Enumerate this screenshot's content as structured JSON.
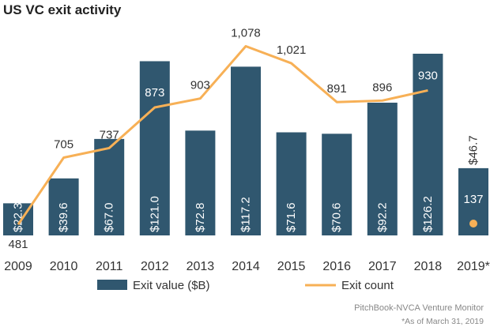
{
  "chart_data": {
    "type": "bar",
    "title": "US VC exit activity",
    "categories": [
      "2009",
      "2010",
      "2011",
      "2012",
      "2013",
      "2014",
      "2015",
      "2016",
      "2017",
      "2018",
      "2019*"
    ],
    "series": [
      {
        "name": "Exit value ($B)",
        "type": "bar",
        "color": "#30576f",
        "values": [
          22.3,
          39.6,
          67.0,
          121.0,
          72.8,
          117.2,
          71.6,
          70.6,
          92.2,
          126.2,
          46.7
        ],
        "labels": [
          "$22.3",
          "$39.6",
          "$67.0",
          "$121.0",
          "$72.8",
          "$117.2",
          "$71.6",
          "$70.6",
          "$92.2",
          "$126.2",
          "$46.7"
        ]
      },
      {
        "name": "Exit count",
        "type": "line",
        "color": "#f7b056",
        "values": [
          481,
          705,
          737,
          873,
          903,
          1078,
          1021,
          891,
          896,
          930,
          137
        ],
        "labels": [
          "481",
          "705",
          "737",
          "873",
          "903",
          "1,078",
          "1,021",
          "891",
          "896",
          "930",
          "137"
        ]
      }
    ],
    "grid": false,
    "legend_position": "bottom"
  },
  "source": "PitchBook-NVCA Venture Monitor",
  "footnote": "*As of March 31, 2019"
}
